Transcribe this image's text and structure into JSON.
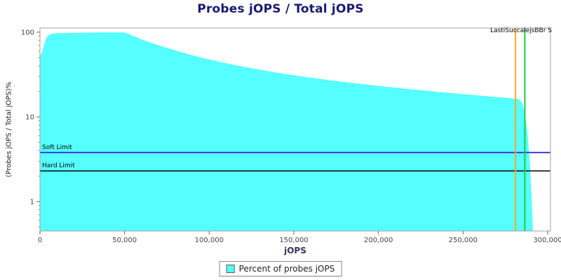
{
  "title": "Probes jOPS / Total jOPS",
  "axes": {
    "x_label": "jOPS",
    "y_label": "(Probes jOPS / Total jOPS)%",
    "x_tick_labels": [
      "0",
      "50,000",
      "100,000",
      "150,000",
      "200,000",
      "250,000",
      "300,000"
    ],
    "y_tick_labels": [
      "1",
      "10",
      "100"
    ]
  },
  "annotations": {
    "soft_limit_label": "Soft Limit",
    "hard_limit_label": "Hard Limit",
    "marker_label": "LastiSuccalejsBBr S"
  },
  "legend": {
    "items": [
      {
        "label": "Percent of probes jOPS",
        "color": "#55ffff"
      }
    ]
  },
  "colors": {
    "title": "#191970",
    "area": "#55ffff",
    "soft_limit": "#3b3bd8",
    "hard_limit": "#141414",
    "marker_orange": "#ffa520",
    "marker_green": "#16cf3a",
    "plot_border": "#a0a0a0",
    "tick_text": "#444444"
  },
  "chart_data": {
    "type": "area",
    "title": "Probes jOPS / Total jOPS",
    "xlabel": "jOPS",
    "ylabel": "(Probes jOPS / Total jOPS)%",
    "y_scale": "log",
    "grid": false,
    "legend_position": "bottom",
    "xlim": [
      0,
      302000
    ],
    "ylim": [
      0.45,
      112
    ],
    "x_ticks": [
      0,
      50000,
      100000,
      150000,
      200000,
      250000,
      300000
    ],
    "y_ticks": [
      1,
      10,
      100
    ],
    "soft_limit": 3.8,
    "hard_limit": 2.3,
    "vertical_markers": [
      {
        "x": 281000,
        "color_key": "marker_orange"
      },
      {
        "x": 286500,
        "color_key": "marker_green"
      }
    ],
    "series": [
      {
        "name": "Percent of probes jOPS",
        "points": [
          [
            0,
            52
          ],
          [
            1200,
            58
          ],
          [
            2500,
            72
          ],
          [
            4000,
            88
          ],
          [
            6000,
            95
          ],
          [
            9000,
            97
          ],
          [
            14000,
            98
          ],
          [
            22000,
            98.6
          ],
          [
            35000,
            99.2
          ],
          [
            50000,
            99.5
          ],
          [
            60000,
            82
          ],
          [
            70000,
            70
          ],
          [
            80000,
            61
          ],
          [
            90000,
            53.5
          ],
          [
            100000,
            47.5
          ],
          [
            115000,
            41
          ],
          [
            130000,
            36
          ],
          [
            145000,
            32
          ],
          [
            160000,
            29
          ],
          [
            180000,
            25.8
          ],
          [
            200000,
            23.2
          ],
          [
            220000,
            21.1
          ],
          [
            240000,
            19.3
          ],
          [
            255000,
            18.2
          ],
          [
            268000,
            17.3
          ],
          [
            278000,
            16.6
          ],
          [
            283000,
            16.2
          ],
          [
            285000,
            14.5
          ],
          [
            286500,
            11
          ],
          [
            288000,
            6.5
          ],
          [
            289500,
            2.8
          ],
          [
            290500,
            1.1
          ],
          [
            291200,
            0.5
          ]
        ]
      }
    ]
  }
}
